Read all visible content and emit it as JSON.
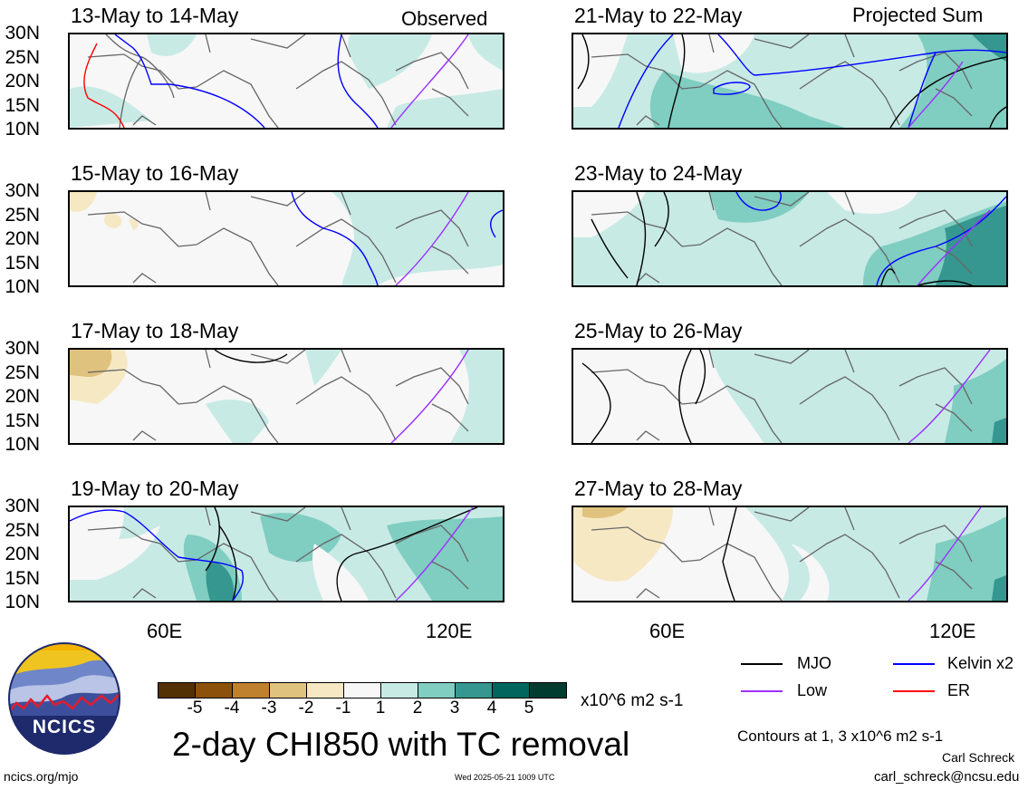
{
  "panels": {
    "p1": {
      "title": "13-May to 14-May",
      "corner": "Observed"
    },
    "p2": {
      "title": "15-May to 16-May"
    },
    "p3": {
      "title": "17-May to 18-May"
    },
    "p4": {
      "title": "19-May to 20-May"
    },
    "p5": {
      "title": "21-May to 22-May",
      "corner": "Projected Sum"
    },
    "p6": {
      "title": "23-May to 24-May"
    },
    "p7": {
      "title": "25-May to 26-May"
    },
    "p8": {
      "title": "27-May to 28-May"
    }
  },
  "lat_labels": [
    "30N",
    "25N",
    "20N",
    "15N",
    "10N"
  ],
  "lon_labels": {
    "left_60": "60E",
    "left_120": "120E",
    "right_60": "60E",
    "right_120": "120E"
  },
  "colorbar": {
    "colors": [
      "#543005",
      "#8c510a",
      "#bf812d",
      "#dfc27d",
      "#f6e8c3",
      "#f7f7f7",
      "#c7eae5",
      "#80cdc1",
      "#35978f",
      "#01665e",
      "#003c30"
    ],
    "ticks": [
      "-5",
      "-4",
      "-3",
      "-2",
      "-1",
      "1",
      "2",
      "3",
      "4",
      "5"
    ],
    "units": "x10^6 m2 s-1"
  },
  "legend": {
    "mjo": {
      "label": "MJO",
      "color": "#000000"
    },
    "kelvin": {
      "label": "Kelvin x2",
      "color": "#0000ff"
    },
    "low": {
      "label": "Low",
      "color": "#9b30ff"
    },
    "er": {
      "label": "ER",
      "color": "#ff0000"
    }
  },
  "main_title": "2-day CHI850 with TC removal",
  "contours_note": "Contours at 1, 3 x10^6 m2 s-1",
  "author": "Carl Schreck",
  "email": "carl_schreck@ncsu.edu",
  "site": "ncics.org/mjo",
  "timestamp": "Wed 2025-05-21 1009 UTC",
  "logo_text": "NCICS"
}
